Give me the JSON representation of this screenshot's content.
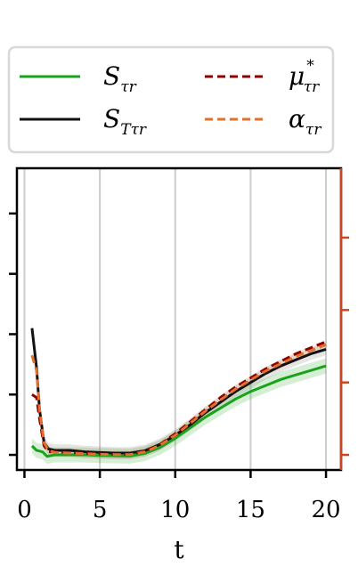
{
  "chart_data": {
    "type": "line",
    "xlabel": "t",
    "xlim": [
      -0.5,
      21
    ],
    "ylim": [
      0,
      1
    ],
    "x_ticks": [
      0,
      5,
      10,
      15,
      20
    ],
    "left_y_ticks": [
      0.05,
      0.25,
      0.45,
      0.65,
      0.85
    ],
    "right_y_ticks": [
      0.05,
      0.29,
      0.53,
      0.77
    ],
    "grid": "vertical",
    "legend_position": "top",
    "colors": {
      "S": "#1aa31a",
      "ST": "#111111",
      "mu": "#8b0000",
      "alpha": "#e07030",
      "right_axis": "#cc4422",
      "grid": "#cccccc"
    },
    "legend": [
      {
        "symbol": "S",
        "subscript": "τr",
        "style": "solid",
        "color_key": "S"
      },
      {
        "symbol": "μ",
        "superscript": "*",
        "subscript": "τr",
        "style": "dashed",
        "color_key": "mu"
      },
      {
        "symbol": "S",
        "subscript": "Tτr",
        "style": "solid",
        "color_key": "ST"
      },
      {
        "symbol": "α",
        "subscript": "τr",
        "style": "dashed",
        "color_key": "alpha"
      }
    ],
    "series": [
      {
        "key": "S",
        "style": "solid",
        "x": [
          0.5,
          0.8,
          1.2,
          1.5,
          2,
          3,
          4,
          5,
          6,
          7,
          8,
          9,
          10,
          11,
          12,
          13,
          14,
          15,
          16,
          17,
          18,
          19,
          20
        ],
        "y": [
          0.08,
          0.065,
          0.06,
          0.045,
          0.05,
          0.05,
          0.05,
          0.048,
          0.047,
          0.046,
          0.055,
          0.075,
          0.105,
          0.14,
          0.175,
          0.205,
          0.235,
          0.26,
          0.28,
          0.3,
          0.315,
          0.33,
          0.345
        ]
      },
      {
        "key": "ST",
        "style": "solid",
        "x": [
          0.5,
          0.8,
          1.0,
          1.3,
          1.6,
          2,
          3,
          4,
          5,
          6,
          7,
          8,
          9,
          10,
          11,
          12,
          13,
          14,
          15,
          16,
          17,
          18,
          19,
          20
        ],
        "y": [
          0.47,
          0.34,
          0.2,
          0.09,
          0.07,
          0.065,
          0.065,
          0.06,
          0.058,
          0.056,
          0.056,
          0.064,
          0.085,
          0.115,
          0.15,
          0.19,
          0.225,
          0.26,
          0.29,
          0.32,
          0.345,
          0.365,
          0.385,
          0.4
        ]
      },
      {
        "key": "mu",
        "style": "dashed",
        "x": [
          0.5,
          0.8,
          1.0,
          1.3,
          1.6,
          2,
          3,
          4,
          5,
          6,
          7,
          8,
          9,
          10,
          11,
          12,
          13,
          14,
          15,
          16,
          17,
          18,
          19,
          20
        ],
        "y": [
          0.25,
          0.24,
          0.17,
          0.08,
          0.06,
          0.06,
          0.058,
          0.055,
          0.053,
          0.052,
          0.052,
          0.062,
          0.085,
          0.12,
          0.16,
          0.2,
          0.24,
          0.275,
          0.305,
          0.335,
          0.36,
          0.385,
          0.405,
          0.425
        ]
      },
      {
        "key": "alpha",
        "style": "dashed",
        "x": [
          0.5,
          0.8,
          1.0,
          1.3,
          1.6,
          2,
          3,
          4,
          5,
          6,
          7,
          8,
          9,
          10,
          11,
          12,
          13,
          14,
          15,
          16,
          17,
          18,
          19,
          20
        ],
        "y": [
          0.38,
          0.33,
          0.2,
          0.09,
          0.065,
          0.058,
          0.056,
          0.054,
          0.052,
          0.051,
          0.051,
          0.06,
          0.082,
          0.115,
          0.155,
          0.195,
          0.232,
          0.268,
          0.298,
          0.328,
          0.352,
          0.376,
          0.396,
          0.415
        ]
      }
    ],
    "bands": [
      {
        "key": "S",
        "color": "#1aa31a",
        "opacity": 0.18,
        "width": 0.025
      },
      {
        "key": "ST",
        "color": "#888888",
        "opacity": 0.22,
        "width": 0.02
      },
      {
        "key": "alpha",
        "color": "#e07030",
        "opacity": 0.15,
        "width": 0.015
      }
    ]
  }
}
